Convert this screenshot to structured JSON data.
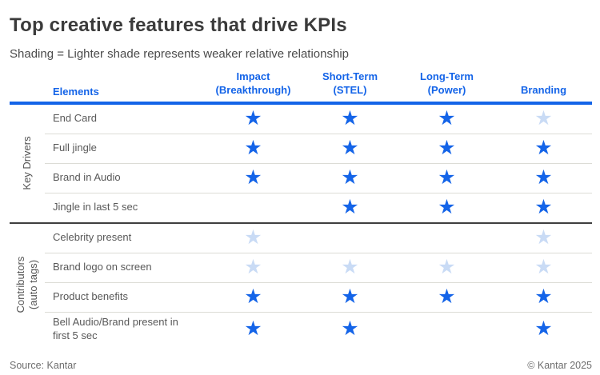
{
  "page": {
    "title": "Top creative features that drive KPIs",
    "subtitle": "Shading = Lighter shade represents weaker relative relationship",
    "source": "Source: Kantar",
    "copyright": "© Kantar 2025"
  },
  "colors": {
    "accent_blue": "#1464e8",
    "strong_star": "#1464e8",
    "weak_star": "#c9dbf5",
    "section_divider": "#3f3f3f",
    "row_separator": "#dcdcd6"
  },
  "table": {
    "elements_header": "Elements"
  },
  "chart_data": {
    "type": "table",
    "title": "Top creative features that drive KPIs",
    "note": "Shading = Lighter shade represents weaker relative relationship",
    "encoding": {
      "strong": "dark blue star (stronger relationship)",
      "weak": "light blue star (weaker relative relationship)",
      "none": "blank cell"
    },
    "columns": [
      {
        "key": "impact",
        "label": "Impact\n(Breakthrough)"
      },
      {
        "key": "short-term",
        "label": "Short-Term\n(STEL)"
      },
      {
        "key": "long-term",
        "label": "Long-Term\n(Power)"
      },
      {
        "key": "branding",
        "label": "Branding"
      }
    ],
    "sections": [
      {
        "key": "key-drivers",
        "group": "Key Drivers",
        "rows": [
          {
            "label": "End Card",
            "values": [
              "strong",
              "strong",
              "strong",
              "weak"
            ]
          },
          {
            "label": "Full jingle",
            "values": [
              "strong",
              "strong",
              "strong",
              "strong"
            ]
          },
          {
            "label": "Brand in Audio",
            "values": [
              "strong",
              "strong",
              "strong",
              "strong"
            ]
          },
          {
            "label": "Jingle in last 5 sec",
            "values": [
              null,
              "strong",
              "strong",
              "strong"
            ]
          }
        ]
      },
      {
        "key": "contributors",
        "group": "Contributors\n(auto tags)",
        "rows": [
          {
            "label": "Celebrity present",
            "values": [
              "weak",
              null,
              null,
              "weak"
            ]
          },
          {
            "label": "Brand logo on screen",
            "values": [
              "weak",
              "weak",
              "weak",
              "weak"
            ]
          },
          {
            "label": "Product benefits",
            "values": [
              "strong",
              "strong",
              "strong",
              "strong"
            ]
          },
          {
            "label": "Bell Audio/Brand present in first 5 sec",
            "values": [
              "strong",
              "strong",
              null,
              "strong"
            ]
          }
        ]
      }
    ]
  }
}
